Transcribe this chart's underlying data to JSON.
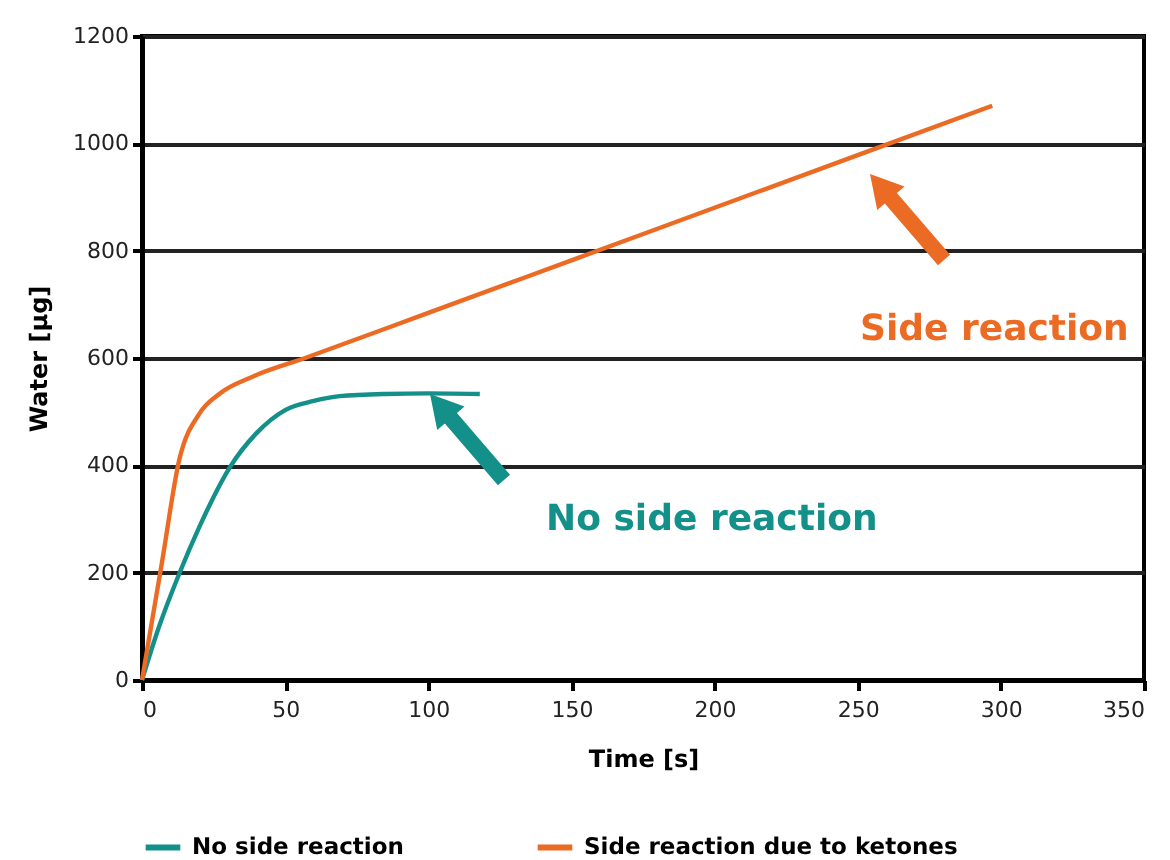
{
  "chart_data": {
    "type": "line",
    "xlabel": "Time [s]",
    "ylabel": "Water [µg]",
    "xlim": [
      0,
      350
    ],
    "xticks": [
      0,
      50,
      100,
      150,
      200,
      250,
      300,
      350
    ],
    "ylim": [
      0,
      1200
    ],
    "yticks": [
      0,
      200,
      400,
      600,
      800,
      1000,
      1200
    ],
    "grid": "y",
    "legend": "bottom",
    "marker": "none",
    "line_style": "solid",
    "series": [
      {
        "name": "No side reaction",
        "color": "#139089",
        "x": [
          0,
          6,
          13,
          20,
          31,
          40,
          50,
          60,
          69,
          85,
          100,
          118
        ],
        "values": [
          0,
          100,
          198,
          285,
          399,
          460,
          503,
          520,
          529,
          533,
          534,
          533
        ]
      },
      {
        "name": "Side reaction due to ketones",
        "color": "#ec6b24",
        "x": [
          0,
          7,
          13,
          20,
          27,
          39,
          57,
          100,
          150,
          200,
          250,
          297
        ],
        "values": [
          0,
          220,
          410,
          496,
          533,
          566,
          600,
          684,
          782,
          880,
          978,
          1070
        ]
      }
    ],
    "annotations": [
      "No side reaction",
      "Side reaction"
    ]
  }
}
